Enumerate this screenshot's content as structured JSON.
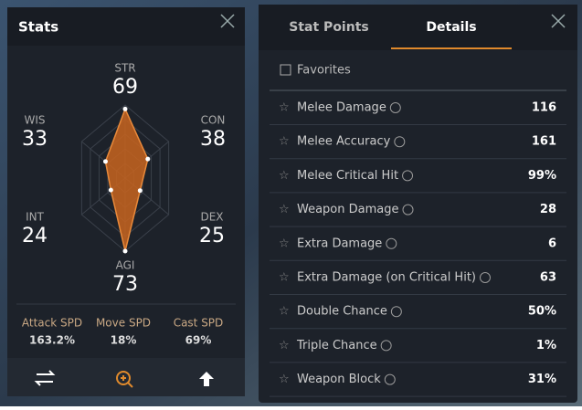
{
  "stats_panel": {
    "title": "Stats",
    "stats": [
      {
        "label": "STR",
        "value": 69
      },
      {
        "label": "CON",
        "value": 38
      },
      {
        "label": "DEX",
        "value": 25
      },
      {
        "label": "AGI",
        "value": 73
      },
      {
        "label": "INT",
        "value": 24
      },
      {
        "label": "WIS",
        "value": 33
      }
    ],
    "speeds": [
      {
        "label": "Attack SPD",
        "value": "163.2%"
      },
      {
        "label": "Move SPD",
        "value": "18%"
      },
      {
        "label": "Cast SPD",
        "value": "69%"
      }
    ]
  },
  "details_panel": {
    "tabs": [
      "Stat Points",
      "Details"
    ],
    "favorites": "Favorites",
    "rows": [
      {
        "label": "Melee Damage",
        "value": "116"
      },
      {
        "label": "Melee Accuracy",
        "value": "161"
      },
      {
        "label": "Melee Critical Hit",
        "value": "99%"
      },
      {
        "label": "Weapon Damage",
        "value": "28"
      },
      {
        "label": "Extra Damage",
        "value": "6"
      },
      {
        "label": "Extra Damage (on Critical Hit)",
        "value": "63"
      },
      {
        "label": "Double Chance",
        "value": "50%"
      },
      {
        "label": "Triple Chance",
        "value": "1%"
      },
      {
        "label": "Weapon Block",
        "value": "31%"
      }
    ]
  }
}
